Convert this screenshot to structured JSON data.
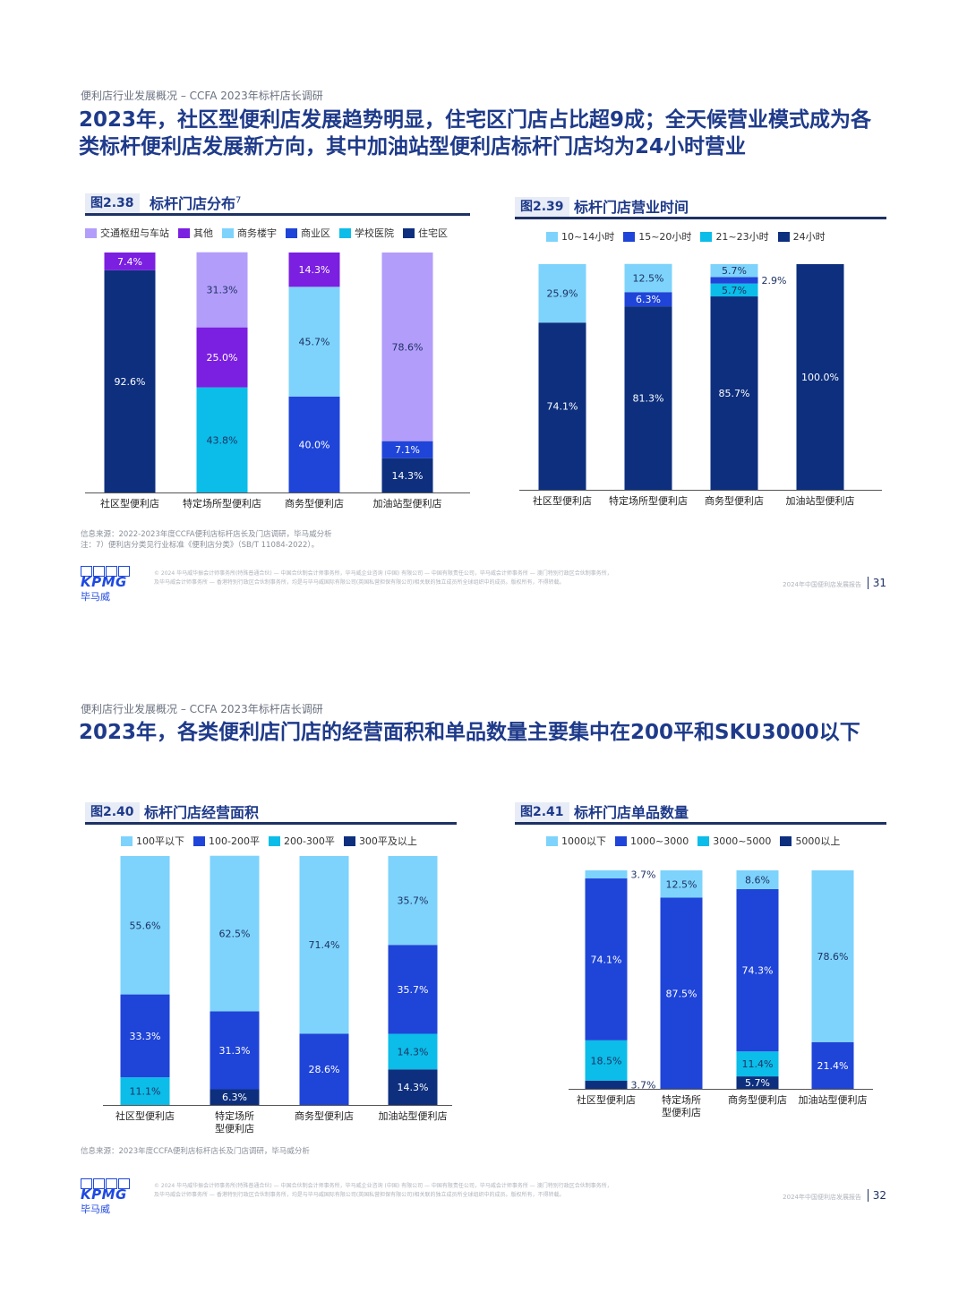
{
  "colors": {
    "light_purple": "#b39dfa",
    "purple": "#7b1fe0",
    "light_blue": "#7dd3fc",
    "blue": "#1f44d8",
    "cyan": "#0bbde8",
    "navy": "#0d2f7e"
  },
  "pages": [
    {
      "subtitle": "便利店行业发展概况 – CCFA 2023年标杆店长调研",
      "headline_line1": "2023年，社区型便利店发展趋势明显，住宅区门店占比超9成；全天候营业模式成为各",
      "headline_line2": "类标杆便利店发展新方向，其中加油站型便利店标杆门店均为24小时营业",
      "source_line1": "信息来源：2022-2023年度CCFA便利店标杆店长及门店调研，毕马威分析",
      "source_line2": "注：7）便利店分类见行业标准《便利店分类》（SB/T 11084-2022）。",
      "page_number": "31"
    },
    {
      "subtitle": "便利店行业发展概况 – CCFA 2023年标杆店长调研",
      "headline_line1": "2023年，各类便利店门店的经营面积和单品数量主要集中在200平和SKU3000以下",
      "source_line1": "信息来源：2023年度CCFA便利店标杆店长及门店调研，毕马威分析",
      "page_number": "32"
    }
  ],
  "footer": {
    "logo_word": "KPMG",
    "logo_cn": "毕马威",
    "fine_print_1": "© 2024 毕马威华振会计师事务所(特殊普通合伙) — 中国合伙制会计师事务所，毕马威企业咨询 (中国) 有限公司 — 中国有限责任公司，毕马威会计师事务所 — 澳门特别行政区合伙制事务所，",
    "fine_print_2": "及毕马威会计师事务所 — 香港特别行政区合伙制事务所，均是与毕马威国际有限公司(英国私营担保有限公司)相关联的独立成员所全球组织中的成员。版权所有，不得转载。",
    "report_name": "2024年中国便利店发展报告"
  },
  "chart_data": [
    {
      "type": "bar",
      "stacked": true,
      "figure_number": "图2.38",
      "title": "标杆门店分布",
      "title_superscript": "7",
      "categories": [
        "社区型便利店",
        "特定场所型便利店",
        "商务型便利店",
        "加油站型便利店"
      ],
      "series": [
        {
          "name": "住宅区",
          "color": "#0d2f7e",
          "values": [
            92.6,
            0,
            0,
            14.3
          ]
        },
        {
          "name": "学校医院",
          "color": "#0bbde8",
          "values": [
            0,
            43.8,
            0,
            0
          ]
        },
        {
          "name": "商业区",
          "color": "#1f44d8",
          "values": [
            0,
            0,
            40.0,
            7.1
          ]
        },
        {
          "name": "商务楼宇",
          "color": "#7dd3fc",
          "values": [
            0,
            0,
            45.7,
            0
          ]
        },
        {
          "name": "其他",
          "color": "#7b1fe0",
          "values": [
            7.4,
            25.0,
            14.3,
            0
          ]
        },
        {
          "name": "交通枢纽与车站",
          "color": "#b39dfa",
          "values": [
            0,
            31.3,
            0,
            78.6
          ]
        }
      ],
      "legend_order": [
        "交通枢纽与车站",
        "其他",
        "商务楼宇",
        "商业区",
        "学校医院",
        "住宅区"
      ],
      "labels": [
        [
          "92.6%",
          "",
          "",
          "",
          "7.4%",
          ""
        ],
        [
          "",
          "43.8%",
          "",
          "",
          "25.0%",
          "31.3%"
        ],
        [
          "",
          "",
          "40.0%",
          "45.7%",
          "14.3%",
          ""
        ],
        [
          "14.3%",
          "",
          "7.1%",
          "",
          "",
          "78.6%"
        ]
      ],
      "ylim": [
        0,
        100
      ],
      "legend_position": "top"
    },
    {
      "type": "bar",
      "stacked": true,
      "figure_number": "图2.39",
      "title": "标杆门店营业时间",
      "categories": [
        "社区型便利店",
        "特定场所型便利店",
        "商务型便利店",
        "加油站型便利店"
      ],
      "series": [
        {
          "name": "24小时",
          "color": "#0d2f7e",
          "values": [
            74.1,
            81.3,
            85.7,
            100.0
          ]
        },
        {
          "name": "21~23小时",
          "color": "#0bbde8",
          "values": [
            0,
            0,
            5.7,
            0
          ]
        },
        {
          "name": "15~20小时",
          "color": "#1f44d8",
          "values": [
            0,
            6.3,
            2.9,
            0
          ]
        },
        {
          "name": "10~14小时",
          "color": "#7dd3fc",
          "values": [
            25.9,
            12.5,
            5.7,
            0
          ]
        }
      ],
      "legend_order": [
        "10~14小时",
        "15~20小时",
        "21~23小时",
        "24小时"
      ],
      "labels": [
        [
          "74.1%",
          "",
          "",
          "25.9%"
        ],
        [
          "81.3%",
          "",
          "6.3%",
          "12.5%"
        ],
        [
          "85.7%",
          "5.7%",
          "2.9%",
          "5.7%"
        ],
        [
          "100.0%",
          "",
          "",
          ""
        ]
      ],
      "ylim": [
        0,
        100
      ],
      "legend_position": "top"
    },
    {
      "type": "bar",
      "stacked": true,
      "figure_number": "图2.40",
      "title": "标杆门店经营面积",
      "categories": [
        "社区型便利店",
        "特定场所\n型便利店",
        "商务型便利店",
        "加油站型便利店"
      ],
      "series": [
        {
          "name": "300平及以上",
          "color": "#0d2f7e",
          "values": [
            0,
            6.3,
            0,
            14.3
          ]
        },
        {
          "name": "200-300平",
          "color": "#0bbde8",
          "values": [
            11.1,
            0,
            0,
            14.3
          ]
        },
        {
          "name": "100-200平",
          "color": "#1f44d8",
          "values": [
            33.3,
            31.3,
            28.6,
            35.7
          ]
        },
        {
          "name": "100平以下",
          "color": "#7dd3fc",
          "values": [
            55.6,
            62.5,
            71.4,
            35.7
          ]
        }
      ],
      "legend_order": [
        "100平以下",
        "100-200平",
        "200-300平",
        "300平及以上"
      ],
      "labels": [
        [
          "",
          "11.1%",
          "33.3%",
          "55.6%"
        ],
        [
          "6.3%",
          "",
          "31.3%",
          "62.5%"
        ],
        [
          "",
          "",
          "28.6%",
          "71.4%"
        ],
        [
          "14.3%",
          "14.3%",
          "35.7%",
          "35.7%"
        ]
      ],
      "ylim": [
        0,
        100
      ],
      "legend_position": "top"
    },
    {
      "type": "bar",
      "stacked": true,
      "figure_number": "图2.41",
      "title": "标杆门店单品数量",
      "categories": [
        "社区型便利店",
        "特定场所\n型便利店",
        "商务型便利店",
        "加油站型便利店"
      ],
      "series": [
        {
          "name": "5000以上",
          "color": "#0d2f7e",
          "values": [
            3.7,
            0,
            5.7,
            0
          ]
        },
        {
          "name": "3000~5000",
          "color": "#0bbde8",
          "values": [
            18.5,
            0,
            11.4,
            0
          ]
        },
        {
          "name": "1000~3000",
          "color": "#1f44d8",
          "values": [
            74.1,
            87.5,
            74.3,
            21.4
          ]
        },
        {
          "name": "1000以下",
          "color": "#7dd3fc",
          "values": [
            3.7,
            12.5,
            8.6,
            78.6
          ]
        }
      ],
      "legend_order": [
        "1000以下",
        "1000~3000",
        "3000~5000",
        "5000以上"
      ],
      "labels": [
        [
          "3.7%",
          "18.5%",
          "74.1%",
          "3.7%"
        ],
        [
          "",
          "",
          "87.5%",
          "12.5%"
        ],
        [
          "5.7%",
          "11.4%",
          "74.3%",
          "8.6%"
        ],
        [
          "",
          "",
          "21.4%",
          "78.6%"
        ]
      ],
      "ylim": [
        0,
        100
      ],
      "legend_position": "top"
    }
  ]
}
